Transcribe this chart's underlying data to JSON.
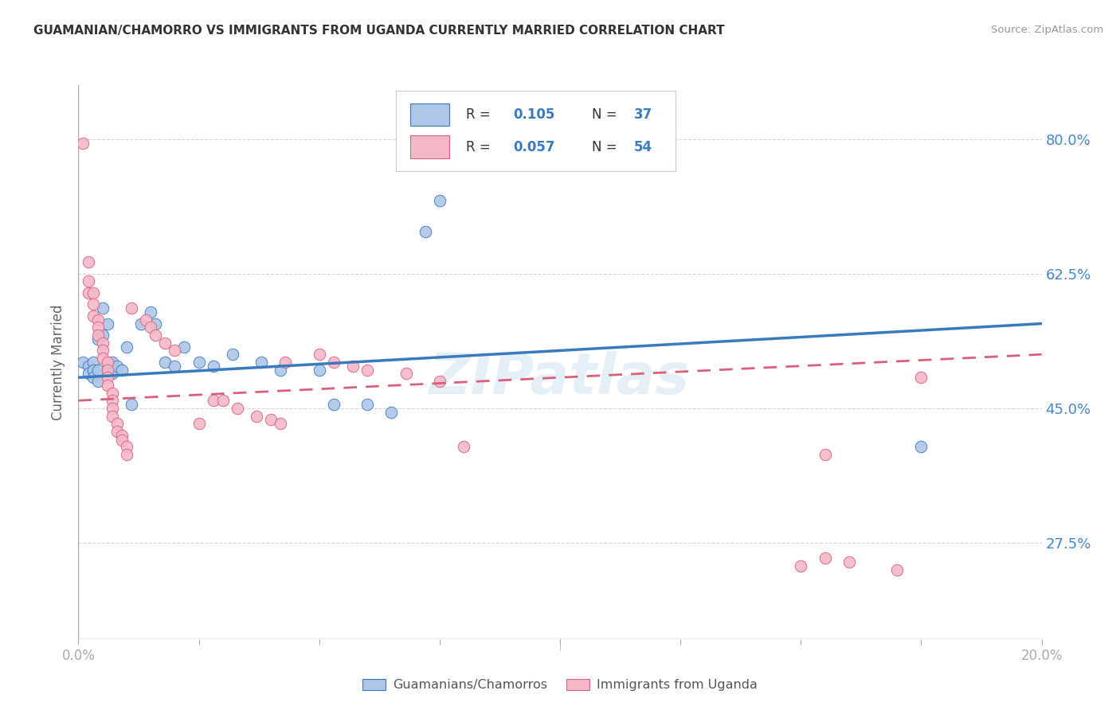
{
  "title": "GUAMANIAN/CHAMORRO VS IMMIGRANTS FROM UGANDA CURRENTLY MARRIED CORRELATION CHART",
  "source": "Source: ZipAtlas.com",
  "ylabel": "Currently Married",
  "yticks": [
    "27.5%",
    "45.0%",
    "62.5%",
    "80.0%"
  ],
  "ytick_values": [
    0.275,
    0.45,
    0.625,
    0.8
  ],
  "xmin": 0.0,
  "xmax": 0.2,
  "ymin": 0.15,
  "ymax": 0.87,
  "legend_blue_r": "0.105",
  "legend_blue_n": "37",
  "legend_pink_r": "0.057",
  "legend_pink_n": "54",
  "legend_label_blue": "Guamanians/Chamorros",
  "legend_label_pink": "Immigrants from Uganda",
  "blue_color": "#aec6e8",
  "pink_color": "#f4b8c8",
  "line_blue_color": "#3a7abf",
  "line_pink_color": "#d9607a",
  "trend_blue_color": "#3a7abf",
  "trend_pink_color": "#d9607a",
  "blue_scatter": [
    [
      0.001,
      0.51
    ],
    [
      0.002,
      0.505
    ],
    [
      0.002,
      0.495
    ],
    [
      0.003,
      0.51
    ],
    [
      0.003,
      0.5
    ],
    [
      0.003,
      0.49
    ],
    [
      0.004,
      0.54
    ],
    [
      0.004,
      0.5
    ],
    [
      0.004,
      0.485
    ],
    [
      0.005,
      0.58
    ],
    [
      0.005,
      0.545
    ],
    [
      0.006,
      0.56
    ],
    [
      0.006,
      0.5
    ],
    [
      0.007,
      0.51
    ],
    [
      0.007,
      0.495
    ],
    [
      0.008,
      0.505
    ],
    [
      0.009,
      0.5
    ],
    [
      0.01,
      0.53
    ],
    [
      0.011,
      0.455
    ],
    [
      0.013,
      0.56
    ],
    [
      0.015,
      0.575
    ],
    [
      0.016,
      0.56
    ],
    [
      0.018,
      0.51
    ],
    [
      0.02,
      0.505
    ],
    [
      0.022,
      0.53
    ],
    [
      0.025,
      0.51
    ],
    [
      0.028,
      0.505
    ],
    [
      0.032,
      0.52
    ],
    [
      0.038,
      0.51
    ],
    [
      0.042,
      0.5
    ],
    [
      0.05,
      0.5
    ],
    [
      0.053,
      0.455
    ],
    [
      0.06,
      0.455
    ],
    [
      0.065,
      0.445
    ],
    [
      0.072,
      0.68
    ],
    [
      0.075,
      0.72
    ],
    [
      0.175,
      0.4
    ]
  ],
  "pink_scatter": [
    [
      0.001,
      0.795
    ],
    [
      0.002,
      0.64
    ],
    [
      0.002,
      0.615
    ],
    [
      0.002,
      0.6
    ],
    [
      0.003,
      0.6
    ],
    [
      0.003,
      0.585
    ],
    [
      0.003,
      0.57
    ],
    [
      0.004,
      0.565
    ],
    [
      0.004,
      0.555
    ],
    [
      0.004,
      0.545
    ],
    [
      0.005,
      0.535
    ],
    [
      0.005,
      0.525
    ],
    [
      0.005,
      0.515
    ],
    [
      0.006,
      0.51
    ],
    [
      0.006,
      0.5
    ],
    [
      0.006,
      0.49
    ],
    [
      0.006,
      0.48
    ],
    [
      0.007,
      0.47
    ],
    [
      0.007,
      0.46
    ],
    [
      0.007,
      0.45
    ],
    [
      0.007,
      0.44
    ],
    [
      0.008,
      0.43
    ],
    [
      0.008,
      0.42
    ],
    [
      0.009,
      0.415
    ],
    [
      0.009,
      0.408
    ],
    [
      0.01,
      0.4
    ],
    [
      0.01,
      0.39
    ],
    [
      0.011,
      0.58
    ],
    [
      0.014,
      0.565
    ],
    [
      0.015,
      0.555
    ],
    [
      0.016,
      0.545
    ],
    [
      0.018,
      0.535
    ],
    [
      0.02,
      0.525
    ],
    [
      0.025,
      0.43
    ],
    [
      0.028,
      0.46
    ],
    [
      0.03,
      0.46
    ],
    [
      0.033,
      0.45
    ],
    [
      0.037,
      0.44
    ],
    [
      0.04,
      0.435
    ],
    [
      0.042,
      0.43
    ],
    [
      0.043,
      0.51
    ],
    [
      0.05,
      0.52
    ],
    [
      0.053,
      0.51
    ],
    [
      0.057,
      0.505
    ],
    [
      0.06,
      0.5
    ],
    [
      0.068,
      0.495
    ],
    [
      0.075,
      0.485
    ],
    [
      0.08,
      0.4
    ],
    [
      0.15,
      0.245
    ],
    [
      0.155,
      0.255
    ],
    [
      0.16,
      0.25
    ],
    [
      0.17,
      0.24
    ],
    [
      0.155,
      0.39
    ],
    [
      0.175,
      0.49
    ]
  ],
  "blue_trend_x": [
    0.0,
    0.2
  ],
  "blue_trend_y": [
    0.49,
    0.56
  ],
  "pink_trend_x": [
    0.0,
    0.2
  ],
  "pink_trend_y": [
    0.46,
    0.52
  ],
  "watermark": "ZIPatlas",
  "background_color": "#ffffff",
  "grid_color": "#d8d8d8"
}
